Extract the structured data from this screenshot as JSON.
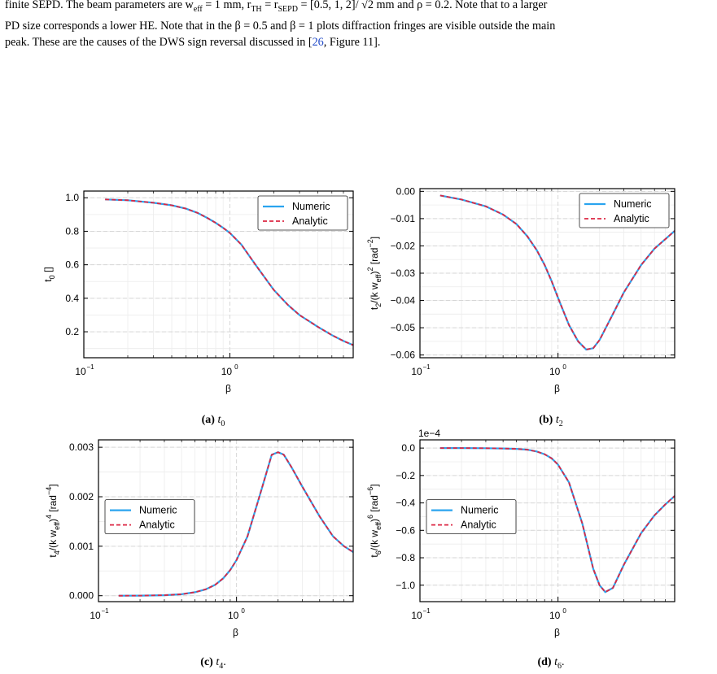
{
  "caption": {
    "line1": "finite SEPD. The beam parameters are w",
    "sub_eff": "eff",
    "line1_b": " = 1 mm, r",
    "sub_th": "TH",
    "line1_c": " = r",
    "sub_sepd": "SEPD",
    "line1_d": " = [0.5, 1, 2]/ √2 mm and ρ = 0.2. Note that to a larger",
    "line2": "PD size corresponds a lower HE. Note that in the β = 0.5 and β = 1 plots diffraction fringes are visible outside the main",
    "line3_a": "peak. These are the causes of the DWS sign reversal discussed in [",
    "ref_num": "26",
    "line3_b": ", Figure 11]."
  },
  "legend": {
    "numeric": "Numeric",
    "analytic": "Analytic"
  },
  "colors": {
    "numeric": "#2aa4ef",
    "analytic": "#dc2743"
  },
  "chart_data": [
    {
      "id": "a",
      "type": "line",
      "subcaption_label": "(a)",
      "subcaption_var": "t",
      "subcaption_sub": "0",
      "subcaption_suffix": "",
      "xlabel": "β",
      "ylabel": "t₀ []",
      "xscale": "log",
      "xlim": [
        0.1,
        7.0
      ],
      "ylim": [
        0.045,
        1.04
      ],
      "yticks": [
        0.2,
        0.4,
        0.6,
        0.8,
        1.0
      ],
      "ytick_labels": [
        "0.2",
        "0.4",
        "0.6",
        "0.8",
        "1.0"
      ],
      "xticks": [
        0.1,
        1
      ],
      "xtick_labels": [
        "10",
        "10"
      ],
      "xtick_exponents": [
        "−1",
        "0"
      ],
      "offset_text": "",
      "legend_position": "top-right",
      "series": [
        {
          "name": "Numeric",
          "x": [
            0.14,
            0.2,
            0.3,
            0.4,
            0.5,
            0.6,
            0.7,
            0.8,
            0.9,
            1.0,
            1.2,
            1.5,
            2.0,
            2.5,
            3.0,
            4.0,
            5.0,
            6.0,
            7.0
          ],
          "y": [
            0.99,
            0.985,
            0.97,
            0.955,
            0.935,
            0.91,
            0.88,
            0.85,
            0.82,
            0.79,
            0.72,
            0.6,
            0.45,
            0.36,
            0.3,
            0.23,
            0.18,
            0.145,
            0.12
          ]
        },
        {
          "name": "Analytic",
          "x": [
            0.14,
            0.2,
            0.3,
            0.4,
            0.5,
            0.6,
            0.7,
            0.8,
            0.9,
            1.0,
            1.2,
            1.5,
            2.0,
            2.5,
            3.0,
            4.0,
            5.0,
            6.0,
            7.0
          ],
          "y": [
            0.99,
            0.985,
            0.97,
            0.955,
            0.935,
            0.91,
            0.88,
            0.85,
            0.82,
            0.79,
            0.72,
            0.6,
            0.45,
            0.36,
            0.3,
            0.23,
            0.18,
            0.145,
            0.12
          ]
        }
      ]
    },
    {
      "id": "b",
      "type": "line",
      "subcaption_label": "(b)",
      "subcaption_var": "t",
      "subcaption_sub": "2",
      "subcaption_suffix": "",
      "xlabel": "β",
      "ylabel": "t₂/(k w_eff)² [rad⁻²]",
      "xscale": "log",
      "xlim": [
        0.1,
        7.0
      ],
      "ylim": [
        -0.061,
        0.001
      ],
      "yticks": [
        0.0,
        -0.01,
        -0.02,
        -0.03,
        -0.04,
        -0.05,
        -0.06
      ],
      "ytick_labels": [
        "0.00",
        "−0.01",
        "−0.02",
        "−0.03",
        "−0.04",
        "−0.05",
        "−0.06"
      ],
      "xticks": [
        0.1,
        1
      ],
      "xtick_labels": [
        "10",
        "10"
      ],
      "xtick_exponents": [
        "−1",
        "0"
      ],
      "offset_text": "",
      "legend_position": "top-right",
      "series": [
        {
          "name": "Numeric",
          "x": [
            0.14,
            0.2,
            0.3,
            0.4,
            0.5,
            0.6,
            0.7,
            0.8,
            0.9,
            1.0,
            1.2,
            1.4,
            1.6,
            1.8,
            2.0,
            2.5,
            3.0,
            4.0,
            5.0,
            6.0,
            7.0
          ],
          "y": [
            -0.0015,
            -0.003,
            -0.0055,
            -0.0085,
            -0.012,
            -0.0165,
            -0.0215,
            -0.027,
            -0.033,
            -0.039,
            -0.049,
            -0.055,
            -0.058,
            -0.0575,
            -0.0545,
            -0.045,
            -0.037,
            -0.027,
            -0.021,
            -0.0175,
            -0.0145
          ]
        },
        {
          "name": "Analytic",
          "x": [
            0.14,
            0.2,
            0.3,
            0.4,
            0.5,
            0.6,
            0.7,
            0.8,
            0.9,
            1.0,
            1.2,
            1.4,
            1.6,
            1.8,
            2.0,
            2.5,
            3.0,
            4.0,
            5.0,
            6.0,
            7.0
          ],
          "y": [
            -0.0015,
            -0.003,
            -0.0055,
            -0.0085,
            -0.012,
            -0.0165,
            -0.0215,
            -0.027,
            -0.033,
            -0.039,
            -0.049,
            -0.055,
            -0.058,
            -0.0575,
            -0.0545,
            -0.045,
            -0.037,
            -0.027,
            -0.021,
            -0.0175,
            -0.0145
          ]
        }
      ]
    },
    {
      "id": "c",
      "type": "line",
      "subcaption_label": "(c)",
      "subcaption_var": "t",
      "subcaption_sub": "4",
      "subcaption_suffix": ".",
      "xlabel": "β",
      "ylabel": "t₄/(k w_eff)⁴ [rad⁻⁴]",
      "xscale": "log",
      "xlim": [
        0.1,
        7.0
      ],
      "ylim": [
        -0.00012,
        0.00315
      ],
      "yticks": [
        0.0,
        0.001,
        0.002,
        0.003
      ],
      "ytick_labels": [
        "0.000",
        "0.001",
        "0.002",
        "0.003"
      ],
      "xticks": [
        0.1,
        1
      ],
      "xtick_labels": [
        "10",
        "10"
      ],
      "xtick_exponents": [
        "−1",
        "0"
      ],
      "offset_text": "",
      "legend_position": "center-left",
      "series": [
        {
          "name": "Numeric",
          "x": [
            0.14,
            0.2,
            0.3,
            0.4,
            0.5,
            0.6,
            0.7,
            0.8,
            0.9,
            1.0,
            1.2,
            1.5,
            1.8,
            2.0,
            2.2,
            2.5,
            3.0,
            4.0,
            5.0,
            6.0,
            7.0
          ],
          "y": [
            0.0,
            2e-06,
            1e-05,
            3e-05,
            7e-05,
            0.00013,
            0.00022,
            0.00035,
            0.00052,
            0.00072,
            0.0012,
            0.0021,
            0.00285,
            0.0029,
            0.00285,
            0.0026,
            0.0022,
            0.0016,
            0.0012,
            0.001,
            0.00088
          ]
        },
        {
          "name": "Analytic",
          "x": [
            0.14,
            0.2,
            0.3,
            0.4,
            0.5,
            0.6,
            0.7,
            0.8,
            0.9,
            1.0,
            1.2,
            1.5,
            1.8,
            2.0,
            2.2,
            2.5,
            3.0,
            4.0,
            5.0,
            6.0,
            7.0
          ],
          "y": [
            0.0,
            2e-06,
            1e-05,
            3e-05,
            7e-05,
            0.00013,
            0.00022,
            0.00035,
            0.00052,
            0.00072,
            0.0012,
            0.0021,
            0.00285,
            0.0029,
            0.00285,
            0.0026,
            0.0022,
            0.0016,
            0.0012,
            0.001,
            0.00088
          ]
        }
      ]
    },
    {
      "id": "d",
      "type": "line",
      "subcaption_label": "(d)",
      "subcaption_var": "t",
      "subcaption_sub": "6",
      "subcaption_suffix": ".",
      "xlabel": "β",
      "ylabel": "t₆/(k w_eff)⁶ [rad⁻⁶]",
      "xscale": "log",
      "xlim": [
        0.1,
        7.0
      ],
      "ylim": [
        -1.12,
        0.06
      ],
      "yticks": [
        0.0,
        -0.2,
        -0.4,
        -0.6,
        -0.8,
        -1.0
      ],
      "ytick_labels": [
        "0.0",
        "−0.2",
        "−0.4",
        "−0.6",
        "−0.8",
        "−1.0"
      ],
      "xticks": [
        0.1,
        1
      ],
      "xtick_labels": [
        "10",
        "10"
      ],
      "xtick_exponents": [
        "−1",
        "0"
      ],
      "offset_text": "1e−4",
      "legend_position": "center-left",
      "series": [
        {
          "name": "Numeric",
          "x": [
            0.14,
            0.2,
            0.3,
            0.4,
            0.5,
            0.6,
            0.7,
            0.8,
            0.9,
            1.0,
            1.2,
            1.5,
            1.8,
            2.0,
            2.2,
            2.5,
            3.0,
            4.0,
            5.0,
            6.0,
            7.0
          ],
          "y": [
            0.0,
            0.0,
            -0.001,
            -0.003,
            -0.006,
            -0.012,
            -0.025,
            -0.045,
            -0.075,
            -0.12,
            -0.25,
            -0.55,
            -0.88,
            -1.0,
            -1.05,
            -1.02,
            -0.85,
            -0.62,
            -0.49,
            -0.41,
            -0.35
          ]
        },
        {
          "name": "Analytic",
          "x": [
            0.14,
            0.2,
            0.3,
            0.4,
            0.5,
            0.6,
            0.7,
            0.8,
            0.9,
            1.0,
            1.2,
            1.5,
            1.8,
            2.0,
            2.2,
            2.5,
            3.0,
            4.0,
            5.0,
            6.0,
            7.0
          ],
          "y": [
            0.0,
            0.0,
            -0.001,
            -0.003,
            -0.006,
            -0.012,
            -0.025,
            -0.045,
            -0.075,
            -0.12,
            -0.25,
            -0.55,
            -0.88,
            -1.0,
            -1.05,
            -1.02,
            -0.85,
            -0.62,
            -0.49,
            -0.41,
            -0.35
          ]
        }
      ]
    }
  ]
}
